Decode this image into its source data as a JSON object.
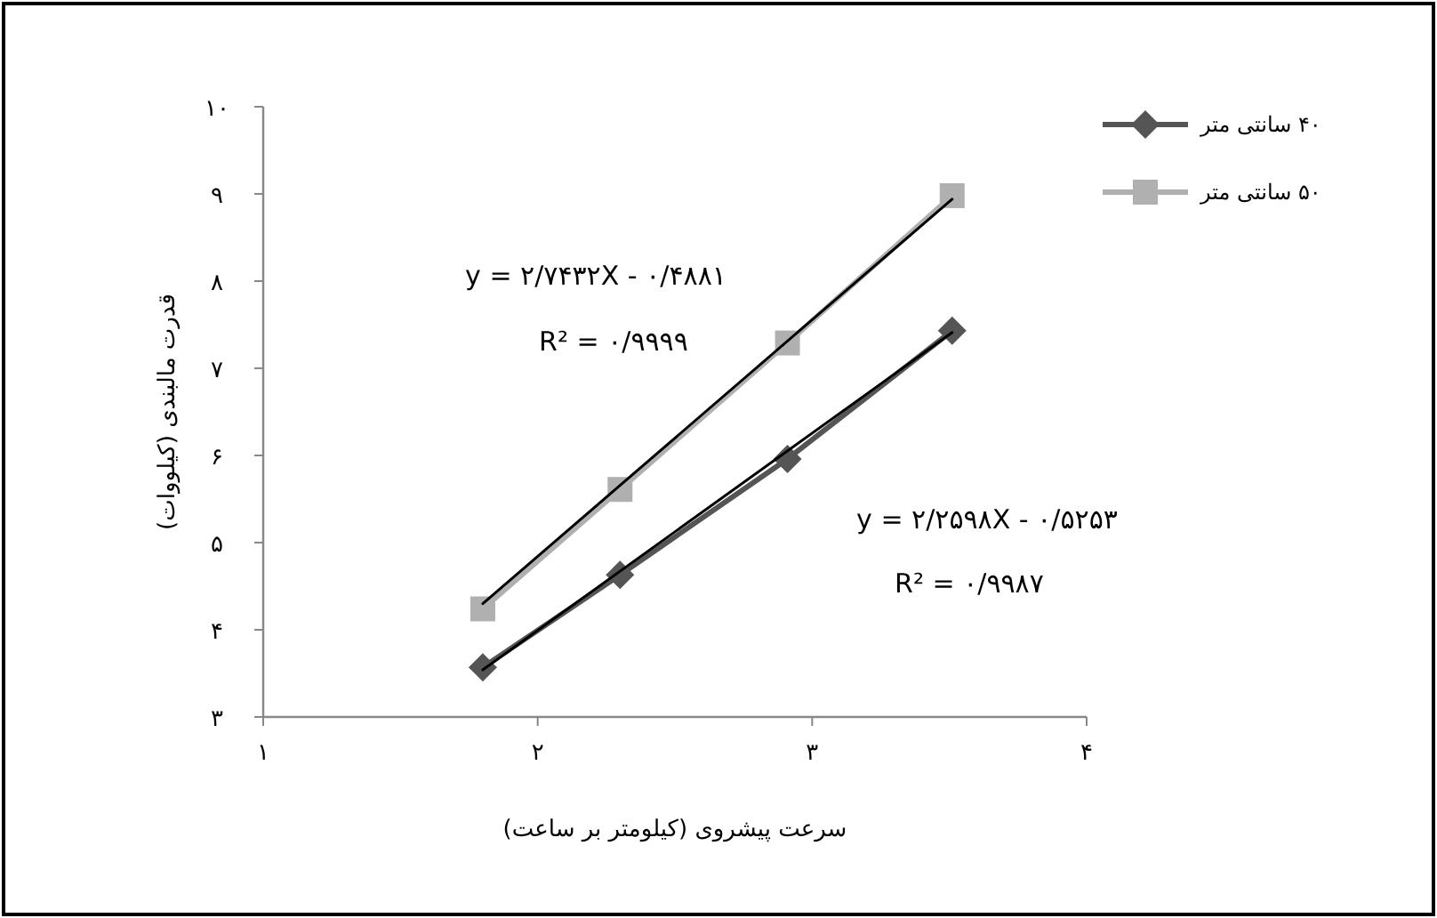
{
  "chart_data": {
    "type": "line",
    "xlabel": "سرعت پیشروی (کیلومتر بر ساعت)",
    "ylabel": "قدرت مالبندی (کیلووات)",
    "xlim": [
      1,
      4
    ],
    "xticks": [
      {
        "value": 1,
        "label": "۱"
      },
      {
        "value": 2,
        "label": "۲"
      },
      {
        "value": 3,
        "label": "۳"
      },
      {
        "value": 4,
        "label": "۴"
      }
    ],
    "ylim": [
      3,
      10
    ],
    "yticks": [
      {
        "value": 3,
        "label": "۳"
      },
      {
        "value": 4,
        "label": "۴"
      },
      {
        "value": 5,
        "label": "۵"
      },
      {
        "value": 6,
        "label": "۶"
      },
      {
        "value": 7,
        "label": "۷"
      },
      {
        "value": 8,
        "label": "۸"
      },
      {
        "value": 9,
        "label": "۹"
      },
      {
        "value": 10,
        "label": "۱۰"
      }
    ],
    "series": [
      {
        "name": "۴۰ سانتی متر",
        "color": "#555555",
        "marker": "diamond",
        "x": [
          1.8,
          2.3,
          2.91,
          3.51
        ],
        "values": [
          3.57,
          4.63,
          5.96,
          7.43
        ]
      },
      {
        "name": "۵۰ سانتی متر",
        "color": "#b0b0b0",
        "marker": "square",
        "x": [
          1.8,
          2.3,
          2.91,
          3.51
        ],
        "values": [
          4.24,
          5.61,
          7.29,
          8.98
        ]
      },
      {
        "type": "line",
        "color": "#000000",
        "marker": "none",
        "x": [
          1.8,
          3.51
        ],
        "values": [
          3.54,
          7.41
        ]
      },
      {
        "type": "line",
        "color": "#000000",
        "marker": "none",
        "x": [
          1.8,
          3.51
        ],
        "values": [
          4.3,
          8.94
        ]
      }
    ],
    "annotations": [
      "y = ۲/۷۴۳۲X - ۰/۴۸۸۱",
      "R² = ۰/۹۹۹۹",
      "y = ۲/۲۵۹۸X - ۰/۵۲۵۳",
      "R² = ۰/۹۹۸۷"
    ],
    "legend": "right",
    "grid": false
  }
}
